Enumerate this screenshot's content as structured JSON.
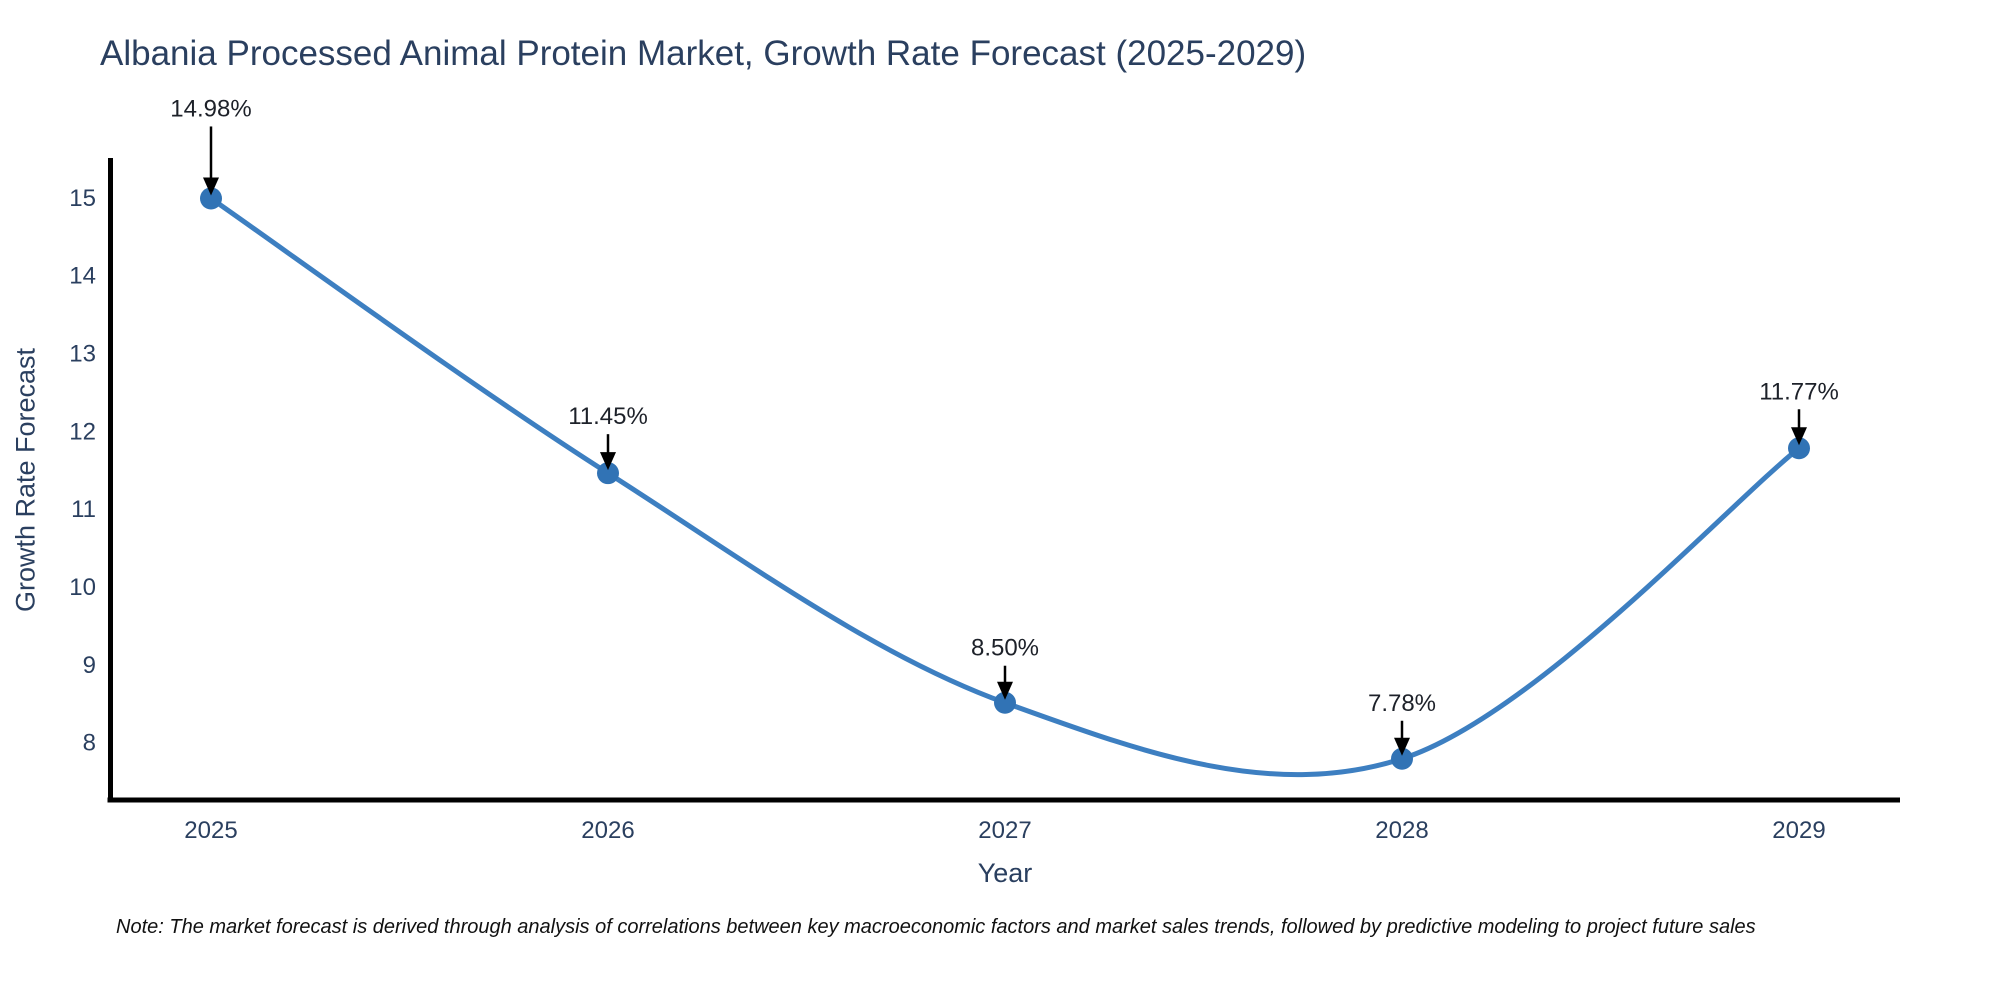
{
  "figure": {
    "note": "Note: The market forecast is derived through analysis of correlations between key macroeconomic factors and market sales trends, followed by predictive modeling to project future sales"
  },
  "chart_data": {
    "type": "line",
    "title": "Albania Processed Animal Protein Market, Growth Rate Forecast (2025-2029)",
    "xlabel": "Year",
    "ylabel": "Growth Rate Forecast",
    "categories": [
      "2025",
      "2026",
      "2027",
      "2028",
      "2029"
    ],
    "values": [
      14.98,
      11.45,
      8.5,
      7.78,
      11.77
    ],
    "point_labels": [
      "14.98%",
      "11.45%",
      "8.50%",
      "7.78%",
      "11.77%"
    ],
    "yticks": [
      8,
      9,
      10,
      11,
      12,
      13,
      14,
      15
    ],
    "ylim": [
      7.25,
      15.5
    ],
    "line_shape": "spline",
    "grid": false,
    "legend": "none",
    "annotation_arrows": true,
    "colors": {
      "line": "#3d7fc1",
      "marker": "#3173b5",
      "axis": "#000000",
      "title_text": "#2a3f5f",
      "tick_text": "#2a3f5f",
      "annotation_text": "#1d2129",
      "note_text": "#111111",
      "background": "#ffffff"
    }
  }
}
